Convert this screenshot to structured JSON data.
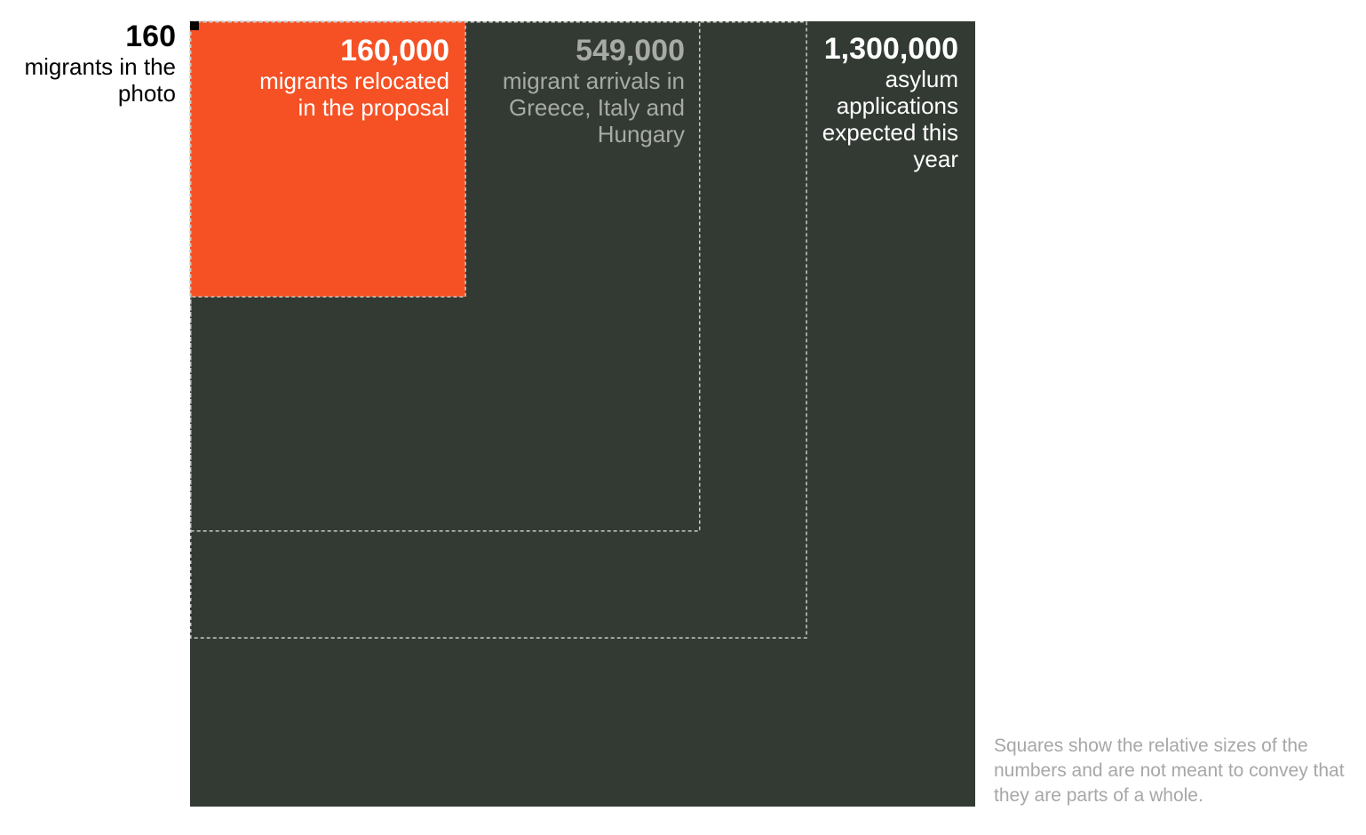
{
  "chart_data": {
    "type": "proportional-area-squares",
    "series": [
      {
        "key": "photo",
        "value": 160,
        "value_label": "160",
        "label": "migrants in the photo",
        "fill": "#000000",
        "style": "solid"
      },
      {
        "key": "relocated",
        "value": 160000,
        "value_label": "160,000",
        "label": "migrants relocated in the proposal",
        "fill": "#f55125",
        "style": "solid-dashed-border"
      },
      {
        "key": "arrivals",
        "value": 549000,
        "value_label": "549,000",
        "label": "migrant arrivals in Greece, Italy and Hungary",
        "fill": "none",
        "style": "dashed-outline"
      },
      {
        "key": "applications",
        "value": 1300000,
        "value_label": "1,300,000",
        "label": "asylum applications expected this year",
        "fill": "#323a33",
        "style": "solid"
      }
    ],
    "footnote": "Squares show the relative sizes of the numbers and are not meant to convey that they are parts of a whole."
  },
  "colors": {
    "background_square": "#323a33",
    "highlight": "#f55125",
    "dashed_outline": "#c9cbc8",
    "muted_text": "#a7aaa5",
    "footnote_text": "#a7a7a7"
  }
}
